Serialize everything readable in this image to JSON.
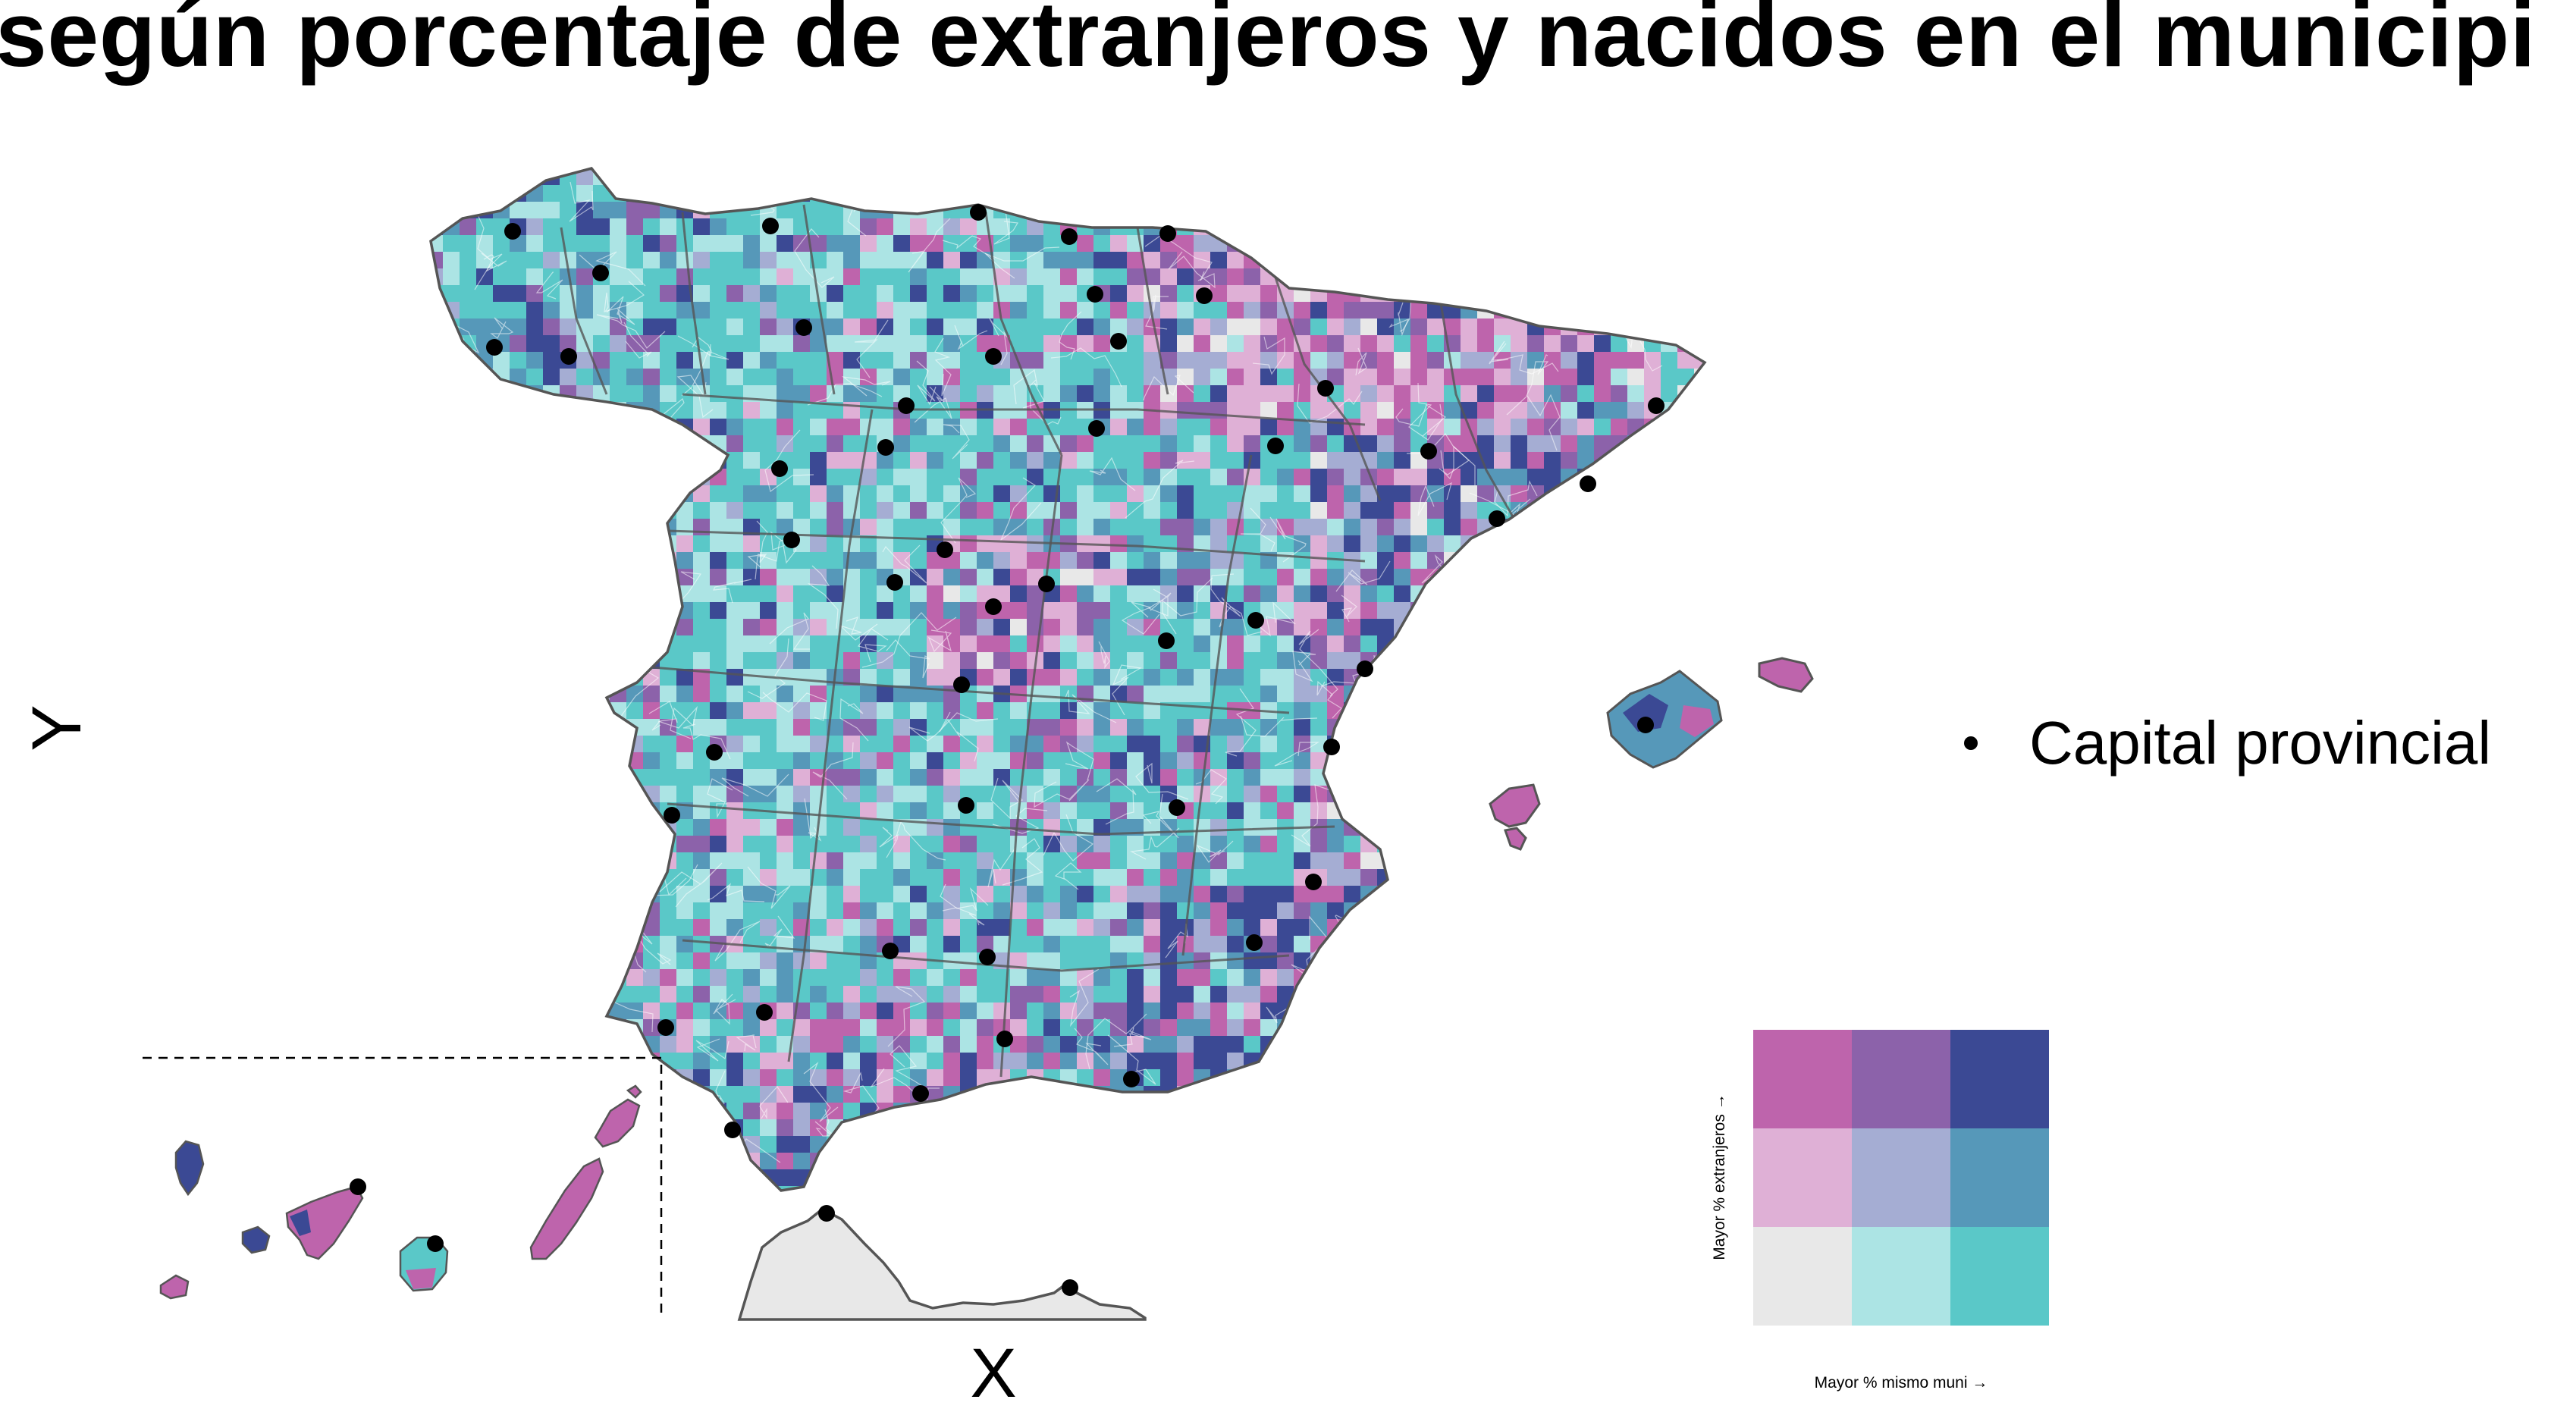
{
  "title": "según porcentaje de extranjeros y nacidos en el municipi",
  "axes": {
    "x_label": "X",
    "y_label": "Y"
  },
  "legend": {
    "capital_symbol": "dot",
    "capital_label": "Capital provincial"
  },
  "bivariate_legend": {
    "y_label": "Mayor % extranjeros →",
    "x_label": "Mayor % mismo muni →",
    "grid": [
      [
        "#be64ac",
        "#8c62aa",
        "#3b4994"
      ],
      [
        "#dfb0d6",
        "#a5add3",
        "#5698b9"
      ],
      [
        "#e8e8e8",
        "#ace4e4",
        "#5ac8c8"
      ]
    ]
  },
  "map": {
    "region": "España",
    "inset": "Islas Canarias",
    "outline_color": "#555555",
    "palette": [
      "#be64ac",
      "#8c62aa",
      "#3b4994",
      "#dfb0d6",
      "#a5add3",
      "#5698b9",
      "#e8e8e8",
      "#ace4e4",
      "#5ac8c8"
    ]
  }
}
